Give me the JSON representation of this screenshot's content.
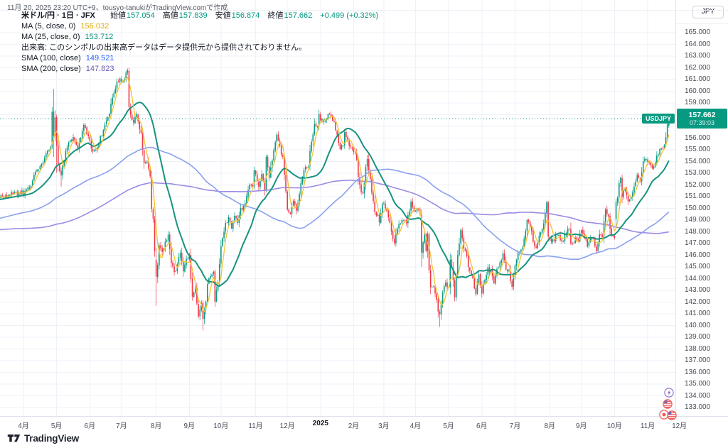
{
  "attribution": "11月 20, 2025 23:20 UTC+9、tousyo-tanukiがTradingView.comで作成",
  "legend": {
    "symbol_line": {
      "title": "米ドル/円 · 1日 · JFX",
      "open_label": "始値",
      "open": "157.054",
      "high_label": "高値",
      "high": "157.839",
      "low_label": "安値",
      "low": "156.874",
      "close_label": "終値",
      "close": "157.662",
      "change": "+0.499 (+0.32%)",
      "value_color": "#089981"
    },
    "ma5": {
      "label": "MA (5, close, 0)",
      "value": "156.032",
      "color": "#dfae0d"
    },
    "ma25": {
      "label": "MA (25, close, 0)",
      "value": "153.712",
      "color": "#0d9180"
    },
    "volume_note": "出来高: このシンボルの出来高データはデータ提供元から提供されておりません。",
    "sma100": {
      "label": "SMA (100, close)",
      "value": "149.521",
      "color": "#2962ff"
    },
    "sma200": {
      "label": "SMA (200, close)",
      "value": "147.823",
      "color": "#6f5bb5"
    }
  },
  "price_axis": {
    "currency_button": "JPY",
    "labels": [
      165,
      164,
      163,
      162,
      161,
      160,
      159,
      158,
      157,
      156,
      155,
      154,
      153,
      152,
      151,
      150,
      149,
      148,
      147,
      146,
      145,
      144,
      143,
      142,
      141,
      140,
      139,
      138,
      137,
      136,
      135,
      134,
      133
    ],
    "price_tag": {
      "symbol": "USDJPY",
      "price": "157.662",
      "countdown": "07:39:03",
      "color": "#089981"
    }
  },
  "time_axis": {
    "labels": [
      {
        "t": "4月",
        "d": 0
      },
      {
        "t": "5月",
        "d": 22
      },
      {
        "t": "6月",
        "d": 44
      },
      {
        "t": "7月",
        "d": 65
      },
      {
        "t": "8月",
        "d": 88
      },
      {
        "t": "9月",
        "d": 110
      },
      {
        "t": "10月",
        "d": 131
      },
      {
        "t": "11月",
        "d": 154
      },
      {
        "t": "12月",
        "d": 175
      },
      {
        "t": "2025",
        "d": 197,
        "major": true
      },
      {
        "t": "2月",
        "d": 219
      },
      {
        "t": "3月",
        "d": 239
      },
      {
        "t": "4月",
        "d": 260
      },
      {
        "t": "5月",
        "d": 282
      },
      {
        "t": "6月",
        "d": 304
      },
      {
        "t": "7月",
        "d": 326
      },
      {
        "t": "8月",
        "d": 349
      },
      {
        "t": "9月",
        "d": 370
      },
      {
        "t": "10月",
        "d": 392
      },
      {
        "t": "11月",
        "d": 414
      },
      {
        "t": "12月",
        "d": 435
      }
    ]
  },
  "footer": {
    "brand": "TradingView"
  },
  "event_badges": [
    {
      "icon": "lightning-event-icon",
      "color": "#7e57c2"
    },
    {
      "icon": "us-flag-event-icon",
      "color": "#ef5350"
    },
    {
      "icon": "jp-flag-event-icon",
      "color": "#ef5350"
    },
    {
      "icon": "us-flag-event-icon",
      "color": "#ef5350"
    }
  ],
  "chart_data": {
    "type": "candlestick",
    "symbol": "USDJPY",
    "symbol_description": "米ドル/円",
    "timeframe": "1日",
    "exchange": "JFX",
    "last_candle": {
      "open": 157.054,
      "high": 157.839,
      "low": 156.874,
      "close": 157.662,
      "change": 0.499,
      "change_pct": 0.32
    },
    "price_line": 157.662,
    "ylim": [
      132.3,
      166.1
    ],
    "xrange_days": [
      -16,
      428
    ],
    "overlays": [
      {
        "name": "MA 5 close",
        "last_value": 156.032
      },
      {
        "name": "MA 25 close",
        "last_value": 153.712
      },
      {
        "name": "SMA 100 close",
        "last_value": 149.521
      },
      {
        "name": "SMA 200 close",
        "last_value": 147.823
      }
    ],
    "colors": {
      "up": "#089981",
      "down": "#f23645",
      "grid": "#eef2f8",
      "ma5": "#f2c335",
      "ma25": "#16937e",
      "sma100": "#8ba0ee",
      "sma200": "#9c8ae4",
      "price_line": "#089981"
    },
    "anchors_pre": [
      [
        -280,
        138.2
      ],
      [
        -265,
        141.0
      ],
      [
        -252,
        144.5
      ],
      [
        -240,
        146.0
      ],
      [
        -228,
        147.5
      ],
      [
        -215,
        149.0
      ],
      [
        -202,
        150.5
      ],
      [
        -190,
        151.5
      ],
      [
        -180,
        149.5
      ],
      [
        -170,
        147.3
      ],
      [
        -160,
        143.8
      ],
      [
        -150,
        141.5
      ],
      [
        -145,
        142.0
      ],
      [
        -138,
        144.8
      ],
      [
        -130,
        146.5
      ],
      [
        -120,
        148.2
      ],
      [
        -112,
        147.8
      ],
      [
        -105,
        148.0
      ],
      [
        -98,
        149.2
      ],
      [
        -90,
        148.5
      ],
      [
        -82,
        147.2
      ],
      [
        -75,
        146.5
      ],
      [
        -68,
        148.0
      ],
      [
        -60,
        149.2
      ],
      [
        -52,
        150.4
      ],
      [
        -45,
        150.8
      ],
      [
        -38,
        150.2
      ],
      [
        -30,
        150.8
      ],
      [
        -24,
        150.9
      ],
      [
        -16,
        151.0
      ]
    ],
    "anchors": [
      [
        0,
        151.35
      ],
      [
        4,
        151.7
      ],
      [
        8,
        153.0
      ],
      [
        12,
        153.9
      ],
      [
        15,
        154.6
      ],
      [
        18,
        155.3
      ],
      [
        19,
        158.3
      ],
      [
        20,
        156.35
      ],
      [
        21,
        157.6
      ],
      [
        22,
        155.3
      ],
      [
        23,
        153.6
      ],
      [
        25,
        153.0
      ],
      [
        27,
        154.3
      ],
      [
        30,
        155.5
      ],
      [
        33,
        156.0
      ],
      [
        36,
        155.0
      ],
      [
        40,
        157.0
      ],
      [
        43,
        156.3
      ],
      [
        45,
        155.0
      ],
      [
        48,
        154.8
      ],
      [
        51,
        156.1
      ],
      [
        54,
        157.0
      ],
      [
        57,
        158.2
      ],
      [
        60,
        159.8
      ],
      [
        62,
        160.8
      ],
      [
        64,
        161.1
      ],
      [
        66,
        160.9
      ],
      [
        68,
        161.5
      ],
      [
        69,
        161.7
      ],
      [
        70,
        158.8
      ],
      [
        71,
        157.9
      ],
      [
        73,
        157.3
      ],
      [
        75,
        158.1
      ],
      [
        76,
        157.4
      ],
      [
        78,
        156.3
      ],
      [
        80,
        154.0
      ],
      [
        82,
        153.8
      ],
      [
        84,
        152.7
      ],
      [
        85,
        150.0
      ],
      [
        86,
        149.3
      ],
      [
        87,
        146.5
      ],
      [
        88,
        144.18
      ],
      [
        89,
        145.3
      ],
      [
        90,
        147.0
      ],
      [
        92,
        146.3
      ],
      [
        94,
        147.1
      ],
      [
        96,
        147.6
      ],
      [
        98,
        145.3
      ],
      [
        100,
        144.5
      ],
      [
        102,
        145.2
      ],
      [
        104,
        146.2
      ],
      [
        106,
        144.8
      ],
      [
        108,
        145.5
      ],
      [
        110,
        146.0
      ],
      [
        112,
        142.3
      ],
      [
        114,
        143.2
      ],
      [
        116,
        140.7
      ],
      [
        118,
        141.8
      ],
      [
        119,
        140.6
      ],
      [
        121,
        142.2
      ],
      [
        122,
        143.6
      ],
      [
        124,
        144.2
      ],
      [
        126,
        144.7
      ],
      [
        127,
        142.2
      ],
      [
        129,
        143.6
      ],
      [
        131,
        146.9
      ],
      [
        134,
        148.7
      ],
      [
        136,
        149.1
      ],
      [
        138,
        148.3
      ],
      [
        140,
        149.2
      ],
      [
        142,
        148.9
      ],
      [
        144,
        149.9
      ],
      [
        146,
        150.2
      ],
      [
        148,
        151.0
      ],
      [
        150,
        152.0
      ],
      [
        152,
        151.8
      ],
      [
        153,
        153.3
      ],
      [
        155,
        152.4
      ],
      [
        156,
        152.0
      ],
      [
        158,
        153.0
      ],
      [
        160,
        151.6
      ],
      [
        161,
        154.6
      ],
      [
        163,
        152.6
      ],
      [
        165,
        154.2
      ],
      [
        167,
        155.6
      ],
      [
        168,
        156.3
      ],
      [
        170,
        155.2
      ],
      [
        172,
        154.2
      ],
      [
        174,
        151.5
      ],
      [
        175,
        149.8
      ],
      [
        177,
        149.6
      ],
      [
        179,
        150.5
      ],
      [
        181,
        150.0
      ],
      [
        183,
        151.2
      ],
      [
        185,
        152.7
      ],
      [
        187,
        153.6
      ],
      [
        189,
        153.4
      ],
      [
        190,
        154.8
      ],
      [
        192,
        156.3
      ],
      [
        193,
        157.2
      ],
      [
        195,
        157.1
      ],
      [
        196,
        157.9
      ],
      [
        198,
        157.5
      ],
      [
        199,
        157.3
      ],
      [
        201,
        157.6
      ],
      [
        202,
        158.1
      ],
      [
        203,
        158.2
      ],
      [
        204,
        157.7
      ],
      [
        206,
        157.5
      ],
      [
        208,
        156.1
      ],
      [
        210,
        155.2
      ],
      [
        212,
        155.6
      ],
      [
        213,
        156.5
      ],
      [
        214,
        156.0
      ],
      [
        216,
        155.5
      ],
      [
        218,
        155.2
      ],
      [
        219,
        154.8
      ],
      [
        221,
        154.3
      ],
      [
        222,
        152.6
      ],
      [
        224,
        151.6
      ],
      [
        225,
        151.4
      ],
      [
        226,
        152.0
      ],
      [
        227,
        153.7
      ],
      [
        228,
        154.4
      ],
      [
        230,
        152.3
      ],
      [
        232,
        150.7
      ],
      [
        233,
        149.7
      ],
      [
        235,
        149.3
      ],
      [
        236,
        149.0
      ],
      [
        238,
        150.2
      ],
      [
        239,
        150.6
      ],
      [
        241,
        149.8
      ],
      [
        243,
        148.8
      ],
      [
        244,
        148.0
      ],
      [
        246,
        147.2
      ],
      [
        248,
        148.2
      ],
      [
        250,
        148.8
      ],
      [
        252,
        149.0
      ],
      [
        254,
        148.7
      ],
      [
        256,
        149.8
      ],
      [
        257,
        150.5
      ],
      [
        259,
        149.8
      ],
      [
        261,
        149.96
      ],
      [
        263,
        149.7
      ],
      [
        264,
        146.1
      ],
      [
        265,
        146.9
      ],
      [
        266,
        147.8
      ],
      [
        267,
        146.3
      ],
      [
        268,
        147.8
      ],
      [
        269,
        144.6
      ],
      [
        270,
        143.5
      ],
      [
        272,
        143.2
      ],
      [
        274,
        142.2
      ],
      [
        275,
        141.2
      ],
      [
        276,
        140.88
      ],
      [
        277,
        141.9
      ],
      [
        278,
        142.6
      ],
      [
        280,
        143.7
      ],
      [
        282,
        143.1
      ],
      [
        283,
        145.4
      ],
      [
        284,
        145.0
      ],
      [
        286,
        142.6
      ],
      [
        288,
        145.9
      ],
      [
        290,
        148.3
      ],
      [
        292,
        146.7
      ],
      [
        294,
        145.7
      ],
      [
        296,
        144.5
      ],
      [
        298,
        143.9
      ],
      [
        300,
        142.8
      ],
      [
        302,
        144.2
      ],
      [
        304,
        142.9
      ],
      [
        306,
        143.9
      ],
      [
        308,
        144.85
      ],
      [
        310,
        144.6
      ],
      [
        312,
        143.5
      ],
      [
        314,
        144.7
      ],
      [
        316,
        145.2
      ],
      [
        318,
        146.1
      ],
      [
        320,
        144.9
      ],
      [
        322,
        144.6
      ],
      [
        324,
        143.4
      ],
      [
        326,
        145.1
      ],
      [
        328,
        146.1
      ],
      [
        330,
        146.3
      ],
      [
        332,
        147.4
      ],
      [
        334,
        148.8
      ],
      [
        336,
        148.6
      ],
      [
        338,
        147.2
      ],
      [
        340,
        146.6
      ],
      [
        342,
        147.7
      ],
      [
        344,
        148.3
      ],
      [
        346,
        149.5
      ],
      [
        347,
        150.7
      ],
      [
        348,
        147.4
      ],
      [
        350,
        147.1
      ],
      [
        352,
        147.4
      ],
      [
        354,
        147.7
      ],
      [
        356,
        147.4
      ],
      [
        358,
        147.2
      ],
      [
        360,
        147.9
      ],
      [
        362,
        148.4
      ],
      [
        363,
        147.2
      ],
      [
        364,
        146.9
      ],
      [
        366,
        147.4
      ],
      [
        368,
        147.05
      ],
      [
        370,
        148.3
      ],
      [
        372,
        147.4
      ],
      [
        374,
        146.9
      ],
      [
        376,
        147.4
      ],
      [
        378,
        147.5
      ],
      [
        380,
        146.4
      ],
      [
        382,
        147.95
      ],
      [
        384,
        147.7
      ],
      [
        386,
        149.8
      ],
      [
        388,
        149.3
      ],
      [
        390,
        147.5
      ],
      [
        392,
        147.45
      ],
      [
        393,
        150.4
      ],
      [
        394,
        151.0
      ],
      [
        395,
        152.1
      ],
      [
        396,
        152.6
      ],
      [
        397,
        151.2
      ],
      [
        399,
        151.8
      ],
      [
        401,
        150.5
      ],
      [
        403,
        150.8
      ],
      [
        405,
        151.8
      ],
      [
        407,
        152.8
      ],
      [
        409,
        152.2
      ],
      [
        411,
        154.0
      ],
      [
        413,
        154.1
      ],
      [
        415,
        153.7
      ],
      [
        417,
        153.4
      ],
      [
        419,
        154.1
      ],
      [
        421,
        154.6
      ],
      [
        423,
        155.2
      ],
      [
        425,
        155.5
      ],
      [
        426,
        156.2
      ],
      [
        427,
        157.0
      ],
      [
        428,
        157.662
      ]
    ],
    "special_candles": {
      "20": {
        "h": 160.2,
        "l": 154.4
      },
      "22": {
        "h": 158.0,
        "l": 153.04
      },
      "25": {
        "l": 151.86
      },
      "69": {
        "h": 161.95
      },
      "88": {
        "o": 145.6,
        "h": 146.6,
        "l": 141.68,
        "c": 144.18
      },
      "119": {
        "l": 139.58
      },
      "127": {
        "l": 141.6
      },
      "264": {
        "o": 149.4,
        "l": 145.0
      },
      "276": {
        "l": 139.89
      },
      "393": {
        "o": 149.1
      },
      "428": {
        "o": 157.054,
        "h": 157.839,
        "l": 156.874,
        "c": 157.662
      }
    }
  }
}
